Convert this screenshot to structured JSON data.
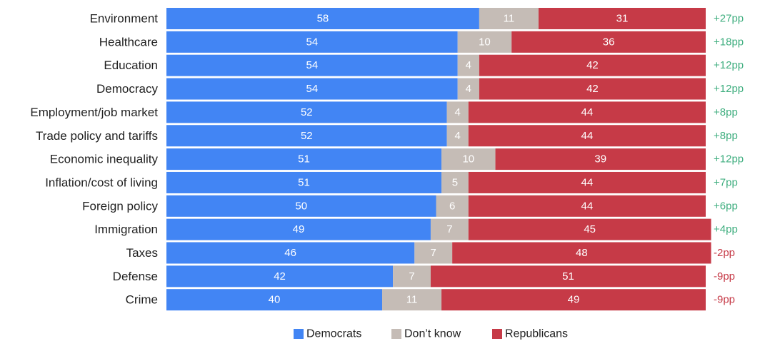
{
  "chart_data": {
    "type": "bar",
    "orientation": "horizontal",
    "stacked": true,
    "title": "",
    "xlabel": "",
    "ylabel": "",
    "xlim": [
      0,
      100
    ],
    "grid": false,
    "legend_position": "bottom-center",
    "categories": [
      "Environment",
      "Healthcare",
      "Education",
      "Democracy",
      "Employment/job market",
      "Trade policy and tariffs",
      "Economic inequality",
      "Inflation/cost of living",
      "Foreign policy",
      "Immigration",
      "Taxes",
      "Defense",
      "Crime"
    ],
    "series": [
      {
        "name": "Democrats",
        "color": "#4285f4",
        "values": [
          58,
          54,
          54,
          54,
          52,
          52,
          51,
          51,
          50,
          49,
          46,
          42,
          40
        ]
      },
      {
        "name": "Don't know",
        "color": "#c5bcb6",
        "values": [
          11,
          10,
          4,
          4,
          4,
          4,
          10,
          5,
          6,
          7,
          7,
          7,
          11
        ]
      },
      {
        "name": "Republicans",
        "color": "#c63a47",
        "values": [
          31,
          36,
          42,
          42,
          44,
          44,
          39,
          44,
          44,
          45,
          48,
          51,
          49
        ]
      }
    ],
    "differences": [
      "+27pp",
      "+18pp",
      "+12pp",
      "+12pp",
      "+8pp",
      "+8pp",
      "+12pp",
      "+7pp",
      "+6pp",
      "+4pp",
      "-2pp",
      "-9pp",
      "-9pp"
    ],
    "difference_colors": {
      "positive": "#3fae7f",
      "negative": "#c63a47"
    },
    "legend": [
      "Democrats",
      "Don’t know",
      "Republicans"
    ]
  }
}
